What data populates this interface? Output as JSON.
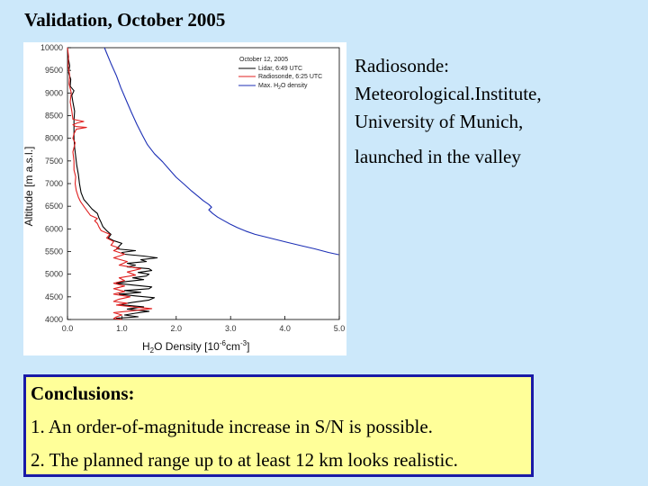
{
  "page": {
    "title": "Validation, October 2005"
  },
  "chart_data": {
    "type": "line",
    "title": "",
    "xlabel_main": "H",
    "xlabel_sub": "2",
    "xlabel_rest": "O Density [10",
    "xlabel_exp": "-6",
    "xlabel_unit": "cm",
    "xlabel_unit_exp": "-3",
    "xlabel_close": "]",
    "ylabel": "Altitude [m a.s.l.]",
    "xlim": [
      0,
      5
    ],
    "ylim": [
      4000,
      10000
    ],
    "x_ticks": [
      "0.0",
      "1.0",
      "2.0",
      "3.0",
      "4.0",
      "5.0"
    ],
    "y_ticks": [
      "4000",
      "4500",
      "5000",
      "5500",
      "6000",
      "6500",
      "7000",
      "7500",
      "8000",
      "8500",
      "9000",
      "9500",
      "10000"
    ],
    "legend_position": "top-right",
    "legend": {
      "date": "October 12, 2005",
      "lidar": "Lidar, 6:49 UTC",
      "radiosonde": "Radiosonde, 6:25 UTC",
      "max_pre": "Max. H",
      "max_sub": "2",
      "max_post": "O density"
    },
    "series": [
      {
        "key": "lidar",
        "color": "#000000",
        "points": [
          [
            1.0,
            4000
          ],
          [
            0.9,
            4030
          ],
          [
            1.3,
            4060
          ],
          [
            1.05,
            4100
          ],
          [
            1.25,
            4140
          ],
          [
            1.5,
            4180
          ],
          [
            1.1,
            4230
          ],
          [
            1.4,
            4280
          ],
          [
            0.95,
            4330
          ],
          [
            1.2,
            4380
          ],
          [
            1.5,
            4430
          ],
          [
            1.6,
            4480
          ],
          [
            1.25,
            4520
          ],
          [
            0.95,
            4560
          ],
          [
            1.35,
            4600
          ],
          [
            1.05,
            4640
          ],
          [
            1.5,
            4680
          ],
          [
            1.55,
            4720
          ],
          [
            1.2,
            4760
          ],
          [
            0.9,
            4800
          ],
          [
            1.1,
            4840
          ],
          [
            1.4,
            4880
          ],
          [
            1.2,
            4920
          ],
          [
            1.45,
            4960
          ],
          [
            1.5,
            5000
          ],
          [
            1.3,
            5040
          ],
          [
            1.55,
            5080
          ],
          [
            1.5,
            5120
          ],
          [
            1.1,
            5160
          ],
          [
            1.25,
            5200
          ],
          [
            1.1,
            5240
          ],
          [
            1.45,
            5280
          ],
          [
            1.35,
            5320
          ],
          [
            1.65,
            5360
          ],
          [
            1.4,
            5400
          ],
          [
            1.05,
            5440
          ],
          [
            1.0,
            5480
          ],
          [
            1.25,
            5520
          ],
          [
            0.9,
            5560
          ],
          [
            0.95,
            5620
          ],
          [
            1.0,
            5680
          ],
          [
            0.85,
            5740
          ],
          [
            0.75,
            5800
          ],
          [
            0.8,
            5880
          ],
          [
            0.72,
            5960
          ],
          [
            0.65,
            6050
          ],
          [
            0.62,
            6140
          ],
          [
            0.58,
            6240
          ],
          [
            0.55,
            6340
          ],
          [
            0.45,
            6440
          ],
          [
            0.38,
            6540
          ],
          [
            0.3,
            6650
          ],
          [
            0.25,
            6800
          ],
          [
            0.22,
            7000
          ],
          [
            0.2,
            7200
          ],
          [
            0.17,
            7400
          ],
          [
            0.15,
            7600
          ],
          [
            0.13,
            7800
          ],
          [
            0.12,
            8000
          ],
          [
            0.12,
            8200
          ],
          [
            0.12,
            8400
          ],
          [
            0.13,
            8600
          ],
          [
            0.1,
            8800
          ],
          [
            0.08,
            8950
          ],
          [
            0.12,
            9050
          ],
          [
            0.05,
            9150
          ],
          [
            0.06,
            9300
          ],
          [
            0.02,
            9450
          ],
          [
            0.04,
            9600
          ],
          [
            0.01,
            9800
          ],
          [
            0.0,
            10000
          ]
        ]
      },
      {
        "key": "radiosonde",
        "color": "#e02020",
        "points": [
          [
            1.0,
            4000
          ],
          [
            0.85,
            4020
          ],
          [
            0.9,
            4060
          ],
          [
            1.0,
            4100
          ],
          [
            0.85,
            4150
          ],
          [
            1.25,
            4200
          ],
          [
            1.55,
            4240
          ],
          [
            1.2,
            4280
          ],
          [
            0.9,
            4320
          ],
          [
            1.1,
            4360
          ],
          [
            0.85,
            4400
          ],
          [
            0.95,
            4450
          ],
          [
            1.15,
            4500
          ],
          [
            0.85,
            4560
          ],
          [
            1.05,
            4620
          ],
          [
            0.85,
            4680
          ],
          [
            1.05,
            4740
          ],
          [
            0.85,
            4800
          ],
          [
            1.05,
            4860
          ],
          [
            0.95,
            4920
          ],
          [
            1.25,
            4980
          ],
          [
            1.1,
            5050
          ],
          [
            1.35,
            5120
          ],
          [
            0.95,
            5200
          ],
          [
            1.1,
            5280
          ],
          [
            0.85,
            5360
          ],
          [
            1.05,
            5440
          ],
          [
            0.85,
            5520
          ],
          [
            0.95,
            5580
          ],
          [
            0.8,
            5640
          ],
          [
            0.85,
            5720
          ],
          [
            0.72,
            5800
          ],
          [
            0.78,
            5880
          ],
          [
            0.62,
            5960
          ],
          [
            0.58,
            6040
          ],
          [
            0.55,
            6120
          ],
          [
            0.5,
            6180
          ],
          [
            0.55,
            6230
          ],
          [
            0.42,
            6300
          ],
          [
            0.36,
            6400
          ],
          [
            0.3,
            6500
          ],
          [
            0.24,
            6600
          ],
          [
            0.2,
            6700
          ],
          [
            0.16,
            6850
          ],
          [
            0.14,
            7000
          ],
          [
            0.15,
            7150
          ],
          [
            0.12,
            7300
          ],
          [
            0.12,
            7500
          ],
          [
            0.1,
            7700
          ],
          [
            0.14,
            7900
          ],
          [
            0.1,
            8000
          ],
          [
            0.12,
            8100
          ],
          [
            0.16,
            8200
          ],
          [
            0.35,
            8240
          ],
          [
            0.15,
            8260
          ],
          [
            0.1,
            8300
          ],
          [
            0.18,
            8340
          ],
          [
            0.3,
            8370
          ],
          [
            0.1,
            8420
          ],
          [
            0.08,
            8600
          ],
          [
            0.05,
            8800
          ],
          [
            0.07,
            9000
          ],
          [
            0.03,
            9200
          ],
          [
            0.04,
            9400
          ],
          [
            0.01,
            9600
          ],
          [
            0.02,
            9800
          ],
          [
            0.0,
            10000
          ]
        ]
      },
      {
        "key": "max_density",
        "color": "#1c2fb5",
        "points": [
          [
            4.99,
            5430
          ],
          [
            4.8,
            5480
          ],
          [
            4.55,
            5560
          ],
          [
            4.3,
            5630
          ],
          [
            4.05,
            5700
          ],
          [
            3.85,
            5760
          ],
          [
            3.65,
            5820
          ],
          [
            3.45,
            5880
          ],
          [
            3.28,
            5950
          ],
          [
            3.12,
            6030
          ],
          [
            3.0,
            6100
          ],
          [
            2.88,
            6180
          ],
          [
            2.76,
            6260
          ],
          [
            2.67,
            6340
          ],
          [
            2.6,
            6420
          ],
          [
            2.65,
            6480
          ],
          [
            2.6,
            6540
          ],
          [
            2.5,
            6620
          ],
          [
            2.4,
            6720
          ],
          [
            2.28,
            6840
          ],
          [
            2.15,
            6980
          ],
          [
            2.0,
            7140
          ],
          [
            1.88,
            7300
          ],
          [
            1.75,
            7480
          ],
          [
            1.6,
            7660
          ],
          [
            1.47,
            7860
          ],
          [
            1.38,
            8060
          ],
          [
            1.28,
            8300
          ],
          [
            1.18,
            8560
          ],
          [
            1.08,
            8840
          ],
          [
            0.98,
            9120
          ],
          [
            0.9,
            9380
          ],
          [
            0.8,
            9650
          ],
          [
            0.72,
            9880
          ],
          [
            0.68,
            10000
          ]
        ]
      }
    ]
  },
  "notes": {
    "line1": "Radiosonde:",
    "line2": "Meteorological.Institute,",
    "line3": "University of Munich,",
    "line4": "launched in the valley"
  },
  "conclusions": {
    "heading": "Conclusions:",
    "item1": "1. An order-of-magnitude increase in S/N is possible.",
    "item2": "2. The planned range up to at least 12 km looks realistic."
  }
}
